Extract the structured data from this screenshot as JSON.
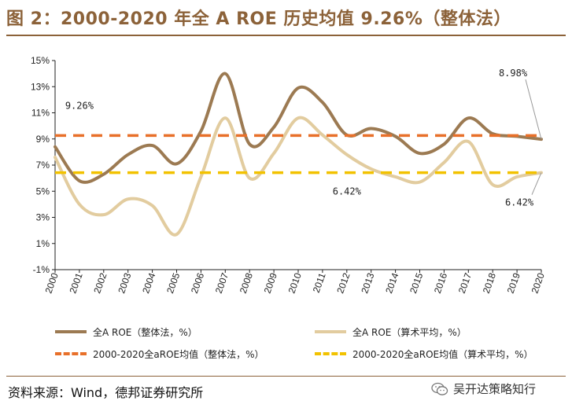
{
  "title": "图 2：2000-2020 年全 A ROE 历史均值 9.26%（整体法）",
  "chart_data": {
    "type": "line",
    "x": [
      "2000",
      "2001",
      "2002",
      "2003",
      "2004",
      "2005",
      "2006",
      "2007",
      "2008",
      "2009",
      "2010",
      "2011",
      "2012",
      "2013",
      "2014",
      "2015",
      "2016",
      "2017",
      "2018",
      "2019",
      "2020"
    ],
    "ylim": [
      -1,
      15
    ],
    "yticks": [
      -1,
      1,
      3,
      5,
      7,
      9,
      11,
      13,
      15
    ],
    "ytick_labels": [
      "-1%",
      "1%",
      "3%",
      "5%",
      "7%",
      "9%",
      "11%",
      "13%",
      "15%"
    ],
    "series": [
      {
        "name": "全A ROE（整体法，%）",
        "style": "solid",
        "color": "#9C7A52",
        "values": [
          8.4,
          5.8,
          6.3,
          7.8,
          8.5,
          7.1,
          9.6,
          14.0,
          8.6,
          9.9,
          12.9,
          11.8,
          9.3,
          9.8,
          9.2,
          7.9,
          8.6,
          10.6,
          9.4,
          9.2,
          8.98
        ]
      },
      {
        "name": "全A ROE（算术平均，%）",
        "style": "solid",
        "color": "#E2CC9F",
        "values": [
          7.6,
          4.0,
          3.2,
          4.4,
          3.9,
          1.7,
          6.1,
          10.6,
          6.0,
          7.9,
          10.6,
          9.3,
          7.8,
          6.7,
          6.1,
          5.7,
          7.2,
          8.8,
          5.5,
          6.1,
          6.42
        ]
      },
      {
        "name": "2000-2020全aROE均值（整体法，%）",
        "style": "dashed",
        "color": "#E8702A",
        "values": [
          9.26,
          9.26,
          9.26,
          9.26,
          9.26,
          9.26,
          9.26,
          9.26,
          9.26,
          9.26,
          9.26,
          9.26,
          9.26,
          9.26,
          9.26,
          9.26,
          9.26,
          9.26,
          9.26,
          9.26,
          9.26
        ]
      },
      {
        "name": "2000-2020全aROE均值（算术平均，%）",
        "style": "dashed",
        "color": "#F2C200",
        "values": [
          6.42,
          6.42,
          6.42,
          6.42,
          6.42,
          6.42,
          6.42,
          6.42,
          6.42,
          6.42,
          6.42,
          6.42,
          6.42,
          6.42,
          6.42,
          6.42,
          6.42,
          6.42,
          6.42,
          6.42,
          6.42
        ]
      }
    ],
    "annotations": [
      {
        "text": "9.26%",
        "value": 9.26,
        "near_x": "2001",
        "placement": "above"
      },
      {
        "text": "6.42%",
        "value": 6.42,
        "near_x": "2012",
        "placement": "below"
      },
      {
        "text": "8.98%",
        "value": 8.98,
        "near_x": "2020",
        "placement": "above"
      },
      {
        "text": "6.42%",
        "value": 6.42,
        "near_x": "2020",
        "placement": "below"
      }
    ],
    "legend_placement": "bottom"
  },
  "legend": [
    {
      "label": "全A ROE（整体法，%）",
      "color": "#9C7A52",
      "style": "solid"
    },
    {
      "label": "全A ROE（算术平均，%）",
      "color": "#E2CC9F",
      "style": "solid"
    },
    {
      "label": "2000-2020全aROE均值（整体法，%）",
      "color": "#E8702A",
      "style": "dashed"
    },
    {
      "label": "2000-2020全aROE均值（算术平均，%）",
      "color": "#F2C200",
      "style": "dashed"
    }
  ],
  "source": "资料来源：Wind，德邦证券研究所",
  "watermark": "吴开达策略知行"
}
